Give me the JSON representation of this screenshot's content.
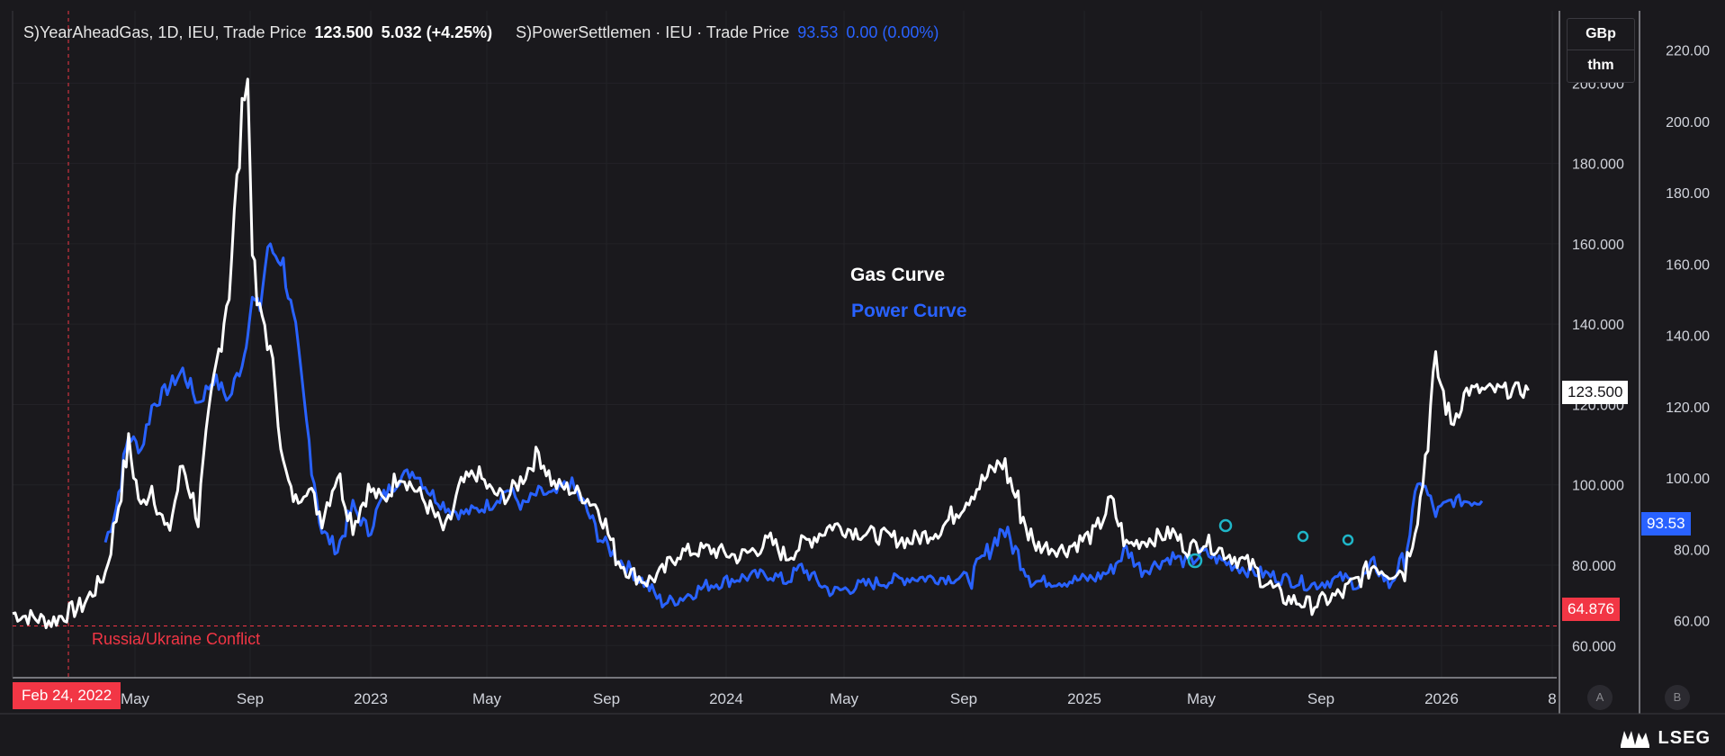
{
  "legend": {
    "gas": {
      "name": "S)YearAheadGas, 1D, IEU, Trade Price",
      "last": "123.500",
      "change": "5.032 (+4.25%)"
    },
    "power": {
      "name": "S)PowerSettlemen · IEU · Trade Price",
      "last": "93.53",
      "change": "0.00 (0.00%)"
    }
  },
  "units": {
    "line1": "GBp",
    "line2": "thm"
  },
  "scale_buttons": {
    "auto": "A",
    "log": "B"
  },
  "brand": "LSEG",
  "colors": {
    "background": "#1a191d",
    "gas": "#ffffff",
    "power": "#2962ff",
    "event": "#f23645",
    "grid": "#2a292e",
    "axis_text": "#d1d4dc"
  },
  "chart_data": {
    "type": "line",
    "title": "",
    "x_tick_labels": [
      "May",
      "Sep",
      "2023",
      "May",
      "Sep",
      "2024",
      "May",
      "Sep",
      "2025",
      "May",
      "Sep",
      "2026",
      "8"
    ],
    "left_axis": {
      "ticks": [
        "200.000",
        "180.000",
        "160.000",
        "140.000",
        "120.000",
        "100.000",
        "80.000",
        "60.000"
      ],
      "ylim": [
        52,
        218
      ]
    },
    "right_axis": {
      "ticks": [
        "220.00",
        "200.00",
        "180.00",
        "160.00",
        "140.00",
        "120.00",
        "100.00",
        "80.00",
        "60.00"
      ],
      "ylim": [
        44,
        231
      ]
    },
    "price_labels": {
      "gas_last": "123.500",
      "power_last": "93.53",
      "reference": "64.876"
    },
    "reference_line": {
      "value": 64.876
    },
    "event": {
      "label": "Russia/Ukraine Conflict",
      "date": "Feb 24, 2022"
    },
    "annotations": {
      "gas": "Gas Curve",
      "power": "Power Curve"
    },
    "series": [
      {
        "name": "Gas Curve",
        "axis": "left",
        "x": [
          0,
          0.025,
          0.045,
          0.055,
          0.06,
          0.067,
          0.075,
          0.083,
          0.09,
          0.1,
          0.11,
          0.12,
          0.13,
          0.14,
          0.15,
          0.152,
          0.155,
          0.158,
          0.163,
          0.17,
          0.175,
          0.18,
          0.183,
          0.19,
          0.2,
          0.21,
          0.22,
          0.23,
          0.24,
          0.25,
          0.26,
          0.27,
          0.28,
          0.29,
          0.3,
          0.31,
          0.32,
          0.33,
          0.34,
          0.35,
          0.36,
          0.37,
          0.38,
          0.39,
          0.4,
          0.41,
          0.42,
          0.43,
          0.45,
          0.47,
          0.49,
          0.5,
          0.51,
          0.53,
          0.55,
          0.58,
          0.6,
          0.62,
          0.64,
          0.66,
          0.68,
          0.7,
          0.71,
          0.72,
          0.73,
          0.74,
          0.75,
          0.76,
          0.77,
          0.78,
          0.8,
          0.82,
          0.84,
          0.86,
          0.88,
          0.89,
          0.9,
          0.91,
          0.92,
          0.93,
          0.94,
          0.95,
          0.96,
          0.965,
          0.97,
          0.975,
          0.98
        ],
        "values": [
          68,
          66,
          70,
          75,
          78,
          92,
          110,
          94,
          100,
          87,
          105,
          92,
          125,
          150,
          198,
          200,
          160,
          145,
          140,
          125,
          105,
          98,
          96,
          100,
          92,
          103,
          90,
          99,
          96,
          103,
          99,
          94,
          88,
          100,
          103,
          98,
          97,
          102,
          108,
          100,
          99,
          97,
          94,
          82,
          78,
          76,
          78,
          83,
          84,
          82,
          86,
          82,
          85,
          90,
          88,
          86,
          89,
          98,
          106,
          85,
          84,
          88,
          96,
          85,
          86,
          87,
          88,
          84,
          86,
          84,
          80,
          72,
          70,
          73,
          80,
          78,
          79,
          96,
          130,
          115,
          123.5,
          123.5,
          123.5,
          123.5,
          123.5,
          123.5,
          123.5
        ]
      },
      {
        "name": "Power Curve",
        "axis": "right",
        "x": [
          0.06,
          0.067,
          0.075,
          0.083,
          0.09,
          0.1,
          0.11,
          0.12,
          0.13,
          0.14,
          0.15,
          0.152,
          0.155,
          0.16,
          0.165,
          0.175,
          0.183,
          0.19,
          0.2,
          0.21,
          0.22,
          0.23,
          0.24,
          0.25,
          0.26,
          0.27,
          0.28,
          0.29,
          0.3,
          0.31,
          0.32,
          0.33,
          0.34,
          0.35,
          0.36,
          0.37,
          0.38,
          0.39,
          0.4,
          0.41,
          0.42,
          0.43,
          0.45,
          0.47,
          0.49,
          0.5,
          0.51,
          0.52,
          0.53,
          0.55,
          0.58,
          0.6,
          0.62,
          0.64,
          0.66,
          0.68,
          0.7,
          0.71,
          0.72,
          0.73,
          0.74,
          0.75,
          0.76,
          0.77,
          0.78,
          0.8,
          0.82,
          0.84,
          0.86,
          0.87,
          0.88,
          0.89,
          0.9,
          0.91,
          0.92,
          0.93,
          0.94,
          0.95
        ],
        "values": [
          82,
          92,
          112,
          108,
          120,
          125,
          130,
          121,
          128,
          122,
          135,
          142,
          150,
          148,
          165,
          160,
          140,
          115,
          85,
          80,
          92,
          85,
          95,
          100,
          102,
          96,
          92,
          90,
          91,
          93,
          97,
          92,
          96,
          95,
          99,
          92,
          83,
          78,
          74,
          70,
          65,
          66,
          70,
          72,
          73,
          71,
          75,
          71,
          68,
          70,
          72,
          72,
          72,
          86,
          71,
          71,
          72,
          74,
          80,
          74,
          76,
          78,
          76,
          79,
          77,
          74,
          72,
          70,
          72,
          70,
          76,
          70,
          78,
          100,
          90,
          93.53,
          93.53,
          93.53
        ]
      }
    ]
  }
}
